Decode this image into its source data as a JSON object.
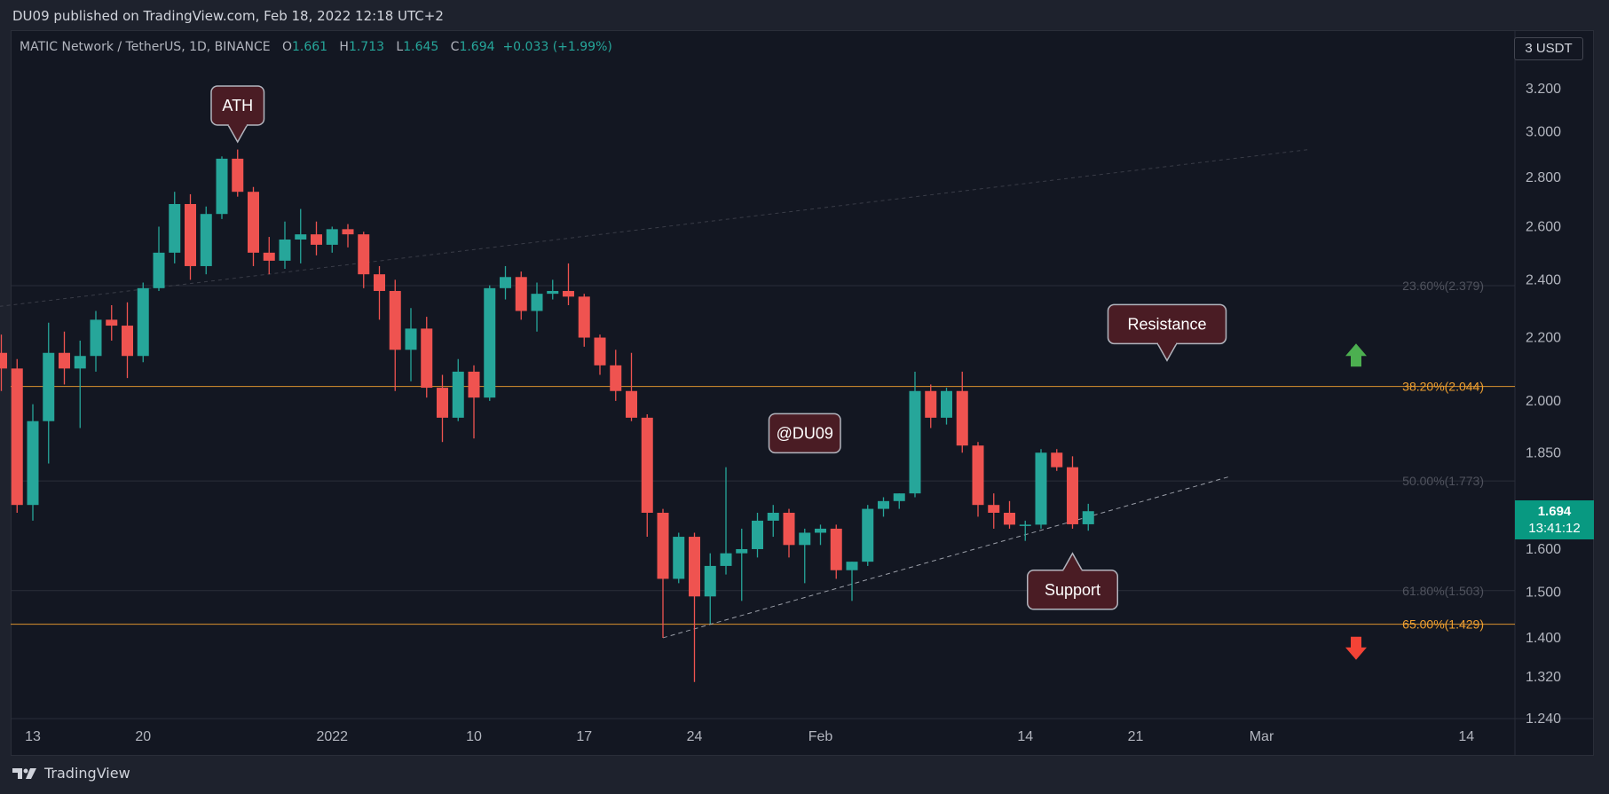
{
  "header": {
    "published": "DU09 published on TradingView.com, Feb 18, 2022 12:18 UTC+2"
  },
  "legend": {
    "symbol": "MATIC Network / TetherUS, 1D, BINANCE",
    "open_label": "O",
    "open": "1.661",
    "high_label": "H",
    "high": "1.713",
    "low_label": "L",
    "low": "1.645",
    "close_label": "C",
    "close": "1.694",
    "change": "+0.033 (+1.99%)"
  },
  "currency_button": "3 USDT",
  "last_price": {
    "value": "1.694",
    "countdown": "13:41:12"
  },
  "footer": {
    "brand": "TradingView"
  },
  "colors": {
    "up": "#26a69a",
    "down": "#ef5350",
    "fib": "#f0a030",
    "background": "#131722"
  },
  "chart_data": {
    "type": "candlestick",
    "y_scale": "log",
    "ylim": [
      1.24,
      3.35
    ],
    "y_ticks": [
      "3.200",
      "3.000",
      "2.800",
      "2.600",
      "2.400",
      "2.200",
      "2.000",
      "1.850",
      "1.600",
      "1.500",
      "1.400",
      "1.320",
      "1.240"
    ],
    "x_ticks": [
      {
        "label": "13",
        "date": "2021-12-13"
      },
      {
        "label": "20",
        "date": "2021-12-20"
      },
      {
        "label": "2022",
        "date": "2022-01-01"
      },
      {
        "label": "10",
        "date": "2022-01-10"
      },
      {
        "label": "17",
        "date": "2022-01-17"
      },
      {
        "label": "24",
        "date": "2022-01-24"
      },
      {
        "label": "Feb",
        "date": "2022-02-01"
      },
      {
        "label": "14",
        "date": "2022-02-14"
      },
      {
        "label": "21",
        "date": "2022-02-21"
      },
      {
        "label": "Mar",
        "date": "2022-03-01"
      },
      {
        "label": "14",
        "date": "2022-03-14"
      }
    ],
    "fib_levels": [
      {
        "label": "23.60%(2.379)",
        "value": 2.379,
        "highlight": false
      },
      {
        "label": "38.20%(2.044)",
        "value": 2.044,
        "highlight": true
      },
      {
        "label": "50.00%(1.773)",
        "value": 1.773,
        "highlight": false
      },
      {
        "label": "61.80%(1.503)",
        "value": 1.503,
        "highlight": false
      },
      {
        "label": "65.00%(1.429)",
        "value": 1.429,
        "highlight": true
      }
    ],
    "candles": [
      {
        "date": "2021-12-11",
        "o": 2.15,
        "h": 2.21,
        "l": 2.03,
        "c": 2.1
      },
      {
        "date": "2021-12-12",
        "o": 2.1,
        "h": 2.13,
        "l": 1.69,
        "c": 1.71
      },
      {
        "date": "2021-12-13",
        "o": 1.71,
        "h": 1.99,
        "l": 1.67,
        "c": 1.94
      },
      {
        "date": "2021-12-14",
        "o": 1.94,
        "h": 2.25,
        "l": 1.82,
        "c": 2.15
      },
      {
        "date": "2021-12-15",
        "o": 2.15,
        "h": 2.22,
        "l": 2.05,
        "c": 2.1
      },
      {
        "date": "2021-12-16",
        "o": 2.1,
        "h": 2.19,
        "l": 1.92,
        "c": 2.14
      },
      {
        "date": "2021-12-17",
        "o": 2.14,
        "h": 2.29,
        "l": 2.09,
        "c": 2.26
      },
      {
        "date": "2021-12-18",
        "o": 2.26,
        "h": 2.31,
        "l": 2.19,
        "c": 2.24
      },
      {
        "date": "2021-12-19",
        "o": 2.24,
        "h": 2.32,
        "l": 2.07,
        "c": 2.14
      },
      {
        "date": "2021-12-20",
        "o": 2.14,
        "h": 2.39,
        "l": 2.12,
        "c": 2.37
      },
      {
        "date": "2021-12-21",
        "o": 2.37,
        "h": 2.6,
        "l": 2.36,
        "c": 2.5
      },
      {
        "date": "2021-12-22",
        "o": 2.5,
        "h": 2.74,
        "l": 2.46,
        "c": 2.69
      },
      {
        "date": "2021-12-23",
        "o": 2.69,
        "h": 2.73,
        "l": 2.4,
        "c": 2.45
      },
      {
        "date": "2021-12-24",
        "o": 2.45,
        "h": 2.68,
        "l": 2.42,
        "c": 2.65
      },
      {
        "date": "2021-12-25",
        "o": 2.65,
        "h": 2.89,
        "l": 2.63,
        "c": 2.88
      },
      {
        "date": "2021-12-26",
        "o": 2.88,
        "h": 2.92,
        "l": 2.72,
        "c": 2.74
      },
      {
        "date": "2021-12-27",
        "o": 2.74,
        "h": 2.76,
        "l": 2.45,
        "c": 2.5
      },
      {
        "date": "2021-12-28",
        "o": 2.5,
        "h": 2.56,
        "l": 2.42,
        "c": 2.47
      },
      {
        "date": "2021-12-29",
        "o": 2.47,
        "h": 2.62,
        "l": 2.44,
        "c": 2.55
      },
      {
        "date": "2021-12-30",
        "o": 2.55,
        "h": 2.67,
        "l": 2.46,
        "c": 2.57
      },
      {
        "date": "2021-12-31",
        "o": 2.57,
        "h": 2.62,
        "l": 2.49,
        "c": 2.53
      },
      {
        "date": "2022-01-01",
        "o": 2.53,
        "h": 2.6,
        "l": 2.5,
        "c": 2.59
      },
      {
        "date": "2022-01-02",
        "o": 2.59,
        "h": 2.61,
        "l": 2.52,
        "c": 2.57
      },
      {
        "date": "2022-01-03",
        "o": 2.57,
        "h": 2.58,
        "l": 2.37,
        "c": 2.42
      },
      {
        "date": "2022-01-04",
        "o": 2.42,
        "h": 2.45,
        "l": 2.26,
        "c": 2.36
      },
      {
        "date": "2022-01-05",
        "o": 2.36,
        "h": 2.4,
        "l": 2.03,
        "c": 2.16
      },
      {
        "date": "2022-01-06",
        "o": 2.16,
        "h": 2.3,
        "l": 2.06,
        "c": 2.23
      },
      {
        "date": "2022-01-07",
        "o": 2.23,
        "h": 2.27,
        "l": 2.01,
        "c": 2.04
      },
      {
        "date": "2022-01-08",
        "o": 2.04,
        "h": 2.08,
        "l": 1.88,
        "c": 1.95
      },
      {
        "date": "2022-01-09",
        "o": 1.95,
        "h": 2.13,
        "l": 1.94,
        "c": 2.09
      },
      {
        "date": "2022-01-10",
        "o": 2.09,
        "h": 2.11,
        "l": 1.89,
        "c": 2.01
      },
      {
        "date": "2022-01-11",
        "o": 2.01,
        "h": 2.38,
        "l": 2.0,
        "c": 2.37
      },
      {
        "date": "2022-01-12",
        "o": 2.37,
        "h": 2.45,
        "l": 2.33,
        "c": 2.41
      },
      {
        "date": "2022-01-13",
        "o": 2.41,
        "h": 2.43,
        "l": 2.26,
        "c": 2.29
      },
      {
        "date": "2022-01-14",
        "o": 2.29,
        "h": 2.39,
        "l": 2.22,
        "c": 2.35
      },
      {
        "date": "2022-01-15",
        "o": 2.35,
        "h": 2.4,
        "l": 2.33,
        "c": 2.36
      },
      {
        "date": "2022-01-16",
        "o": 2.36,
        "h": 2.46,
        "l": 2.31,
        "c": 2.34
      },
      {
        "date": "2022-01-17",
        "o": 2.34,
        "h": 2.35,
        "l": 2.17,
        "c": 2.2
      },
      {
        "date": "2022-01-18",
        "o": 2.2,
        "h": 2.21,
        "l": 2.08,
        "c": 2.11
      },
      {
        "date": "2022-01-19",
        "o": 2.11,
        "h": 2.16,
        "l": 2.0,
        "c": 2.03
      },
      {
        "date": "2022-01-20",
        "o": 2.03,
        "h": 2.15,
        "l": 1.94,
        "c": 1.95
      },
      {
        "date": "2022-01-21",
        "o": 1.95,
        "h": 1.96,
        "l": 1.63,
        "c": 1.69
      },
      {
        "date": "2022-01-22",
        "o": 1.69,
        "h": 1.7,
        "l": 1.4,
        "c": 1.53
      },
      {
        "date": "2022-01-23",
        "o": 1.53,
        "h": 1.64,
        "l": 1.52,
        "c": 1.63
      },
      {
        "date": "2022-01-24",
        "o": 1.63,
        "h": 1.64,
        "l": 1.31,
        "c": 1.49
      },
      {
        "date": "2022-01-25",
        "o": 1.49,
        "h": 1.59,
        "l": 1.43,
        "c": 1.56
      },
      {
        "date": "2022-01-26",
        "o": 1.56,
        "h": 1.81,
        "l": 1.54,
        "c": 1.59
      },
      {
        "date": "2022-01-27",
        "o": 1.59,
        "h": 1.65,
        "l": 1.48,
        "c": 1.6
      },
      {
        "date": "2022-01-28",
        "o": 1.6,
        "h": 1.69,
        "l": 1.58,
        "c": 1.67
      },
      {
        "date": "2022-01-29",
        "o": 1.67,
        "h": 1.71,
        "l": 1.63,
        "c": 1.69
      },
      {
        "date": "2022-01-30",
        "o": 1.69,
        "h": 1.7,
        "l": 1.58,
        "c": 1.61
      },
      {
        "date": "2022-01-31",
        "o": 1.61,
        "h": 1.65,
        "l": 1.52,
        "c": 1.64
      },
      {
        "date": "2022-02-01",
        "o": 1.64,
        "h": 1.66,
        "l": 1.61,
        "c": 1.65
      },
      {
        "date": "2022-02-02",
        "o": 1.65,
        "h": 1.66,
        "l": 1.53,
        "c": 1.55
      },
      {
        "date": "2022-02-03",
        "o": 1.55,
        "h": 1.57,
        "l": 1.48,
        "c": 1.57
      },
      {
        "date": "2022-02-04",
        "o": 1.57,
        "h": 1.71,
        "l": 1.56,
        "c": 1.7
      },
      {
        "date": "2022-02-05",
        "o": 1.7,
        "h": 1.73,
        "l": 1.68,
        "c": 1.72
      },
      {
        "date": "2022-02-06",
        "o": 1.72,
        "h": 1.74,
        "l": 1.7,
        "c": 1.74
      },
      {
        "date": "2022-02-07",
        "o": 1.74,
        "h": 2.09,
        "l": 1.73,
        "c": 2.03
      },
      {
        "date": "2022-02-08",
        "o": 2.03,
        "h": 2.05,
        "l": 1.92,
        "c": 1.95
      },
      {
        "date": "2022-02-09",
        "o": 1.95,
        "h": 2.04,
        "l": 1.93,
        "c": 2.03
      },
      {
        "date": "2022-02-10",
        "o": 2.03,
        "h": 2.09,
        "l": 1.85,
        "c": 1.87
      },
      {
        "date": "2022-02-11",
        "o": 1.87,
        "h": 1.88,
        "l": 1.68,
        "c": 1.71
      },
      {
        "date": "2022-02-12",
        "o": 1.71,
        "h": 1.74,
        "l": 1.65,
        "c": 1.69
      },
      {
        "date": "2022-02-13",
        "o": 1.69,
        "h": 1.72,
        "l": 1.65,
        "c": 1.66
      },
      {
        "date": "2022-02-14",
        "o": 1.66,
        "h": 1.67,
        "l": 1.62,
        "c": 1.66
      },
      {
        "date": "2022-02-15",
        "o": 1.66,
        "h": 1.86,
        "l": 1.65,
        "c": 1.85
      },
      {
        "date": "2022-02-16",
        "o": 1.85,
        "h": 1.86,
        "l": 1.8,
        "c": 1.81
      },
      {
        "date": "2022-02-17",
        "o": 1.81,
        "h": 1.84,
        "l": 1.65,
        "c": 1.661
      },
      {
        "date": "2022-02-18",
        "o": 1.661,
        "h": 1.713,
        "l": 1.645,
        "c": 1.694
      }
    ],
    "annotations": [
      {
        "text": "ATH",
        "date": "2021-12-26",
        "price": 3.12,
        "pointer": "down"
      },
      {
        "text": "@DU09",
        "date": "2022-01-31",
        "price": 1.905,
        "pointer": "none"
      },
      {
        "text": "Resistance",
        "date": "2022-02-23",
        "price": 2.245,
        "pointer": "down"
      },
      {
        "text": "Support",
        "date": "2022-02-17",
        "price": 1.505,
        "pointer": "up"
      }
    ],
    "trendlines": [
      {
        "from": {
          "date": "2021-12-10",
          "price": 2.3
        },
        "to": {
          "date": "2022-03-04",
          "price": 2.92
        }
      },
      {
        "from": {
          "date": "2022-01-22",
          "price": 1.4
        },
        "to": {
          "date": "2022-02-27",
          "price": 1.785
        }
      }
    ],
    "arrows": [
      {
        "direction": "up",
        "date": "2022-03-07",
        "price": 2.14,
        "color": "#4caf50"
      },
      {
        "direction": "down",
        "date": "2022-03-07",
        "price": 1.38,
        "color": "#f44336"
      }
    ]
  }
}
